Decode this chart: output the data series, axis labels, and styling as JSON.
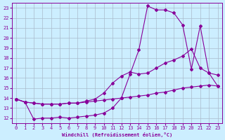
{
  "background_color": "#cceeff",
  "line_color": "#880099",
  "grid_color": "#aabbcc",
  "xlabel": "Windchill (Refroidissement éolien,°C)",
  "xlim": [
    -0.5,
    23.5
  ],
  "ylim": [
    11.5,
    23.5
  ],
  "xticks": [
    0,
    1,
    2,
    3,
    4,
    5,
    6,
    7,
    8,
    9,
    10,
    11,
    12,
    13,
    14,
    15,
    16,
    17,
    18,
    19,
    20,
    21,
    22,
    23
  ],
  "yticks": [
    12,
    13,
    14,
    15,
    16,
    17,
    18,
    19,
    20,
    21,
    22,
    23
  ],
  "line1_x": [
    0,
    1,
    2,
    3,
    4,
    5,
    6,
    7,
    8,
    9,
    10,
    11,
    12,
    13,
    14,
    15,
    16,
    17,
    18,
    19,
    20,
    21,
    22,
    23
  ],
  "line1_y": [
    13.9,
    13.6,
    13.5,
    13.4,
    13.4,
    13.4,
    13.5,
    13.5,
    13.6,
    13.7,
    13.8,
    13.9,
    14.0,
    14.1,
    14.2,
    14.3,
    14.5,
    14.6,
    14.8,
    15.0,
    15.1,
    15.2,
    15.3,
    15.2
  ],
  "line2_x": [
    0,
    1,
    2,
    3,
    4,
    5,
    6,
    7,
    8,
    9,
    10,
    11,
    12,
    13,
    14,
    15,
    16,
    17,
    18,
    19,
    20,
    21,
    22,
    23
  ],
  "line2_y": [
    13.9,
    13.6,
    11.9,
    12.0,
    12.0,
    12.1,
    12.0,
    12.1,
    12.2,
    12.3,
    12.5,
    13.0,
    14.0,
    16.4,
    18.8,
    23.2,
    22.8,
    22.8,
    22.5,
    21.3,
    16.9,
    21.2,
    16.5,
    15.2
  ],
  "line3_x": [
    0,
    1,
    2,
    3,
    4,
    5,
    6,
    7,
    8,
    9,
    10,
    11,
    12,
    13,
    14,
    15,
    16,
    17,
    18,
    19,
    20,
    21,
    22,
    23
  ],
  "line3_y": [
    13.9,
    13.6,
    13.5,
    13.4,
    13.4,
    13.4,
    13.5,
    13.5,
    13.7,
    13.9,
    14.5,
    15.5,
    16.2,
    16.6,
    16.4,
    16.5,
    17.0,
    17.5,
    17.8,
    18.2,
    18.9,
    17.0,
    16.5,
    16.3
  ]
}
